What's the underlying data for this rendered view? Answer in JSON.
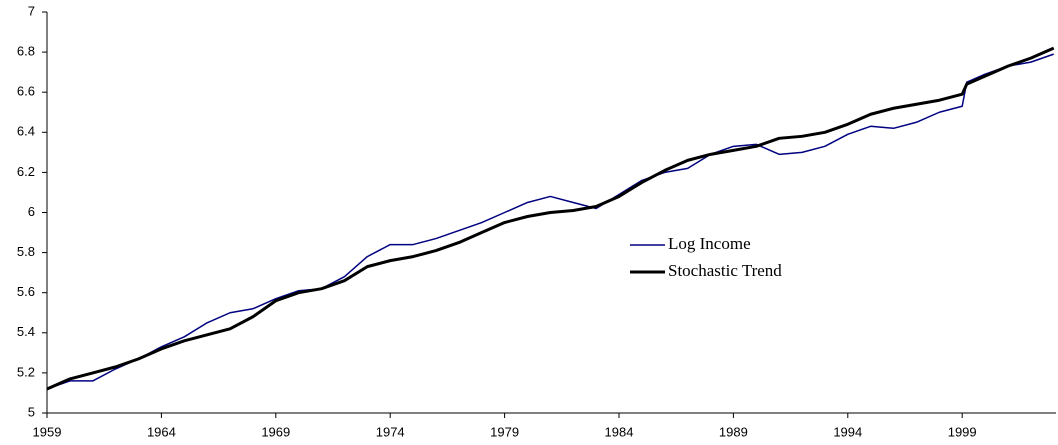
{
  "chart_data": {
    "type": "line",
    "x": [
      1959,
      1960,
      1961,
      1962,
      1963,
      1964,
      1965,
      1966,
      1967,
      1968,
      1969,
      1970,
      1971,
      1972,
      1973,
      1974,
      1975,
      1976,
      1977,
      1978,
      1979,
      1980,
      1981,
      1982,
      1983,
      1984,
      1985,
      1986,
      1987,
      1988,
      1989,
      1990,
      1991,
      1992,
      1993,
      1994,
      1995,
      1996,
      1997,
      1998,
      1999,
      1999.2,
      2000,
      2001,
      2002,
      2003
    ],
    "series": [
      {
        "name": "Log Income",
        "color": "#000080",
        "width": 1.5,
        "values": [
          5.12,
          5.16,
          5.16,
          5.22,
          5.27,
          5.33,
          5.38,
          5.45,
          5.5,
          5.52,
          5.57,
          5.61,
          5.62,
          5.68,
          5.78,
          5.84,
          5.84,
          5.87,
          5.91,
          5.95,
          6.0,
          6.05,
          6.08,
          6.05,
          6.02,
          6.09,
          6.16,
          6.2,
          6.22,
          6.29,
          6.33,
          6.34,
          6.29,
          6.3,
          6.33,
          6.39,
          6.43,
          6.42,
          6.45,
          6.5,
          6.53,
          6.65,
          6.69,
          6.73,
          6.75,
          6.79
        ]
      },
      {
        "name": "Stochastic Trend",
        "color": "#000000",
        "width": 3,
        "values": [
          5.12,
          5.17,
          5.2,
          5.23,
          5.27,
          5.32,
          5.36,
          5.39,
          5.42,
          5.48,
          5.56,
          5.6,
          5.62,
          5.66,
          5.73,
          5.76,
          5.78,
          5.81,
          5.85,
          5.9,
          5.95,
          5.98,
          6.0,
          6.01,
          6.03,
          6.08,
          6.15,
          6.21,
          6.26,
          6.29,
          6.31,
          6.33,
          6.37,
          6.38,
          6.4,
          6.44,
          6.49,
          6.52,
          6.54,
          6.56,
          6.59,
          6.64,
          6.68,
          6.73,
          6.77,
          6.82
        ]
      }
    ],
    "xlim": [
      1959,
      2003.1
    ],
    "xticks": [
      1959,
      1964,
      1969,
      1974,
      1979,
      1984,
      1989,
      1994,
      1999
    ],
    "ylim": [
      5,
      7
    ],
    "yticks": [
      5,
      5.2,
      5.4,
      5.6,
      5.8,
      6,
      6.2,
      6.4,
      6.6,
      6.8,
      7
    ],
    "grid": false,
    "legend": "center right"
  }
}
